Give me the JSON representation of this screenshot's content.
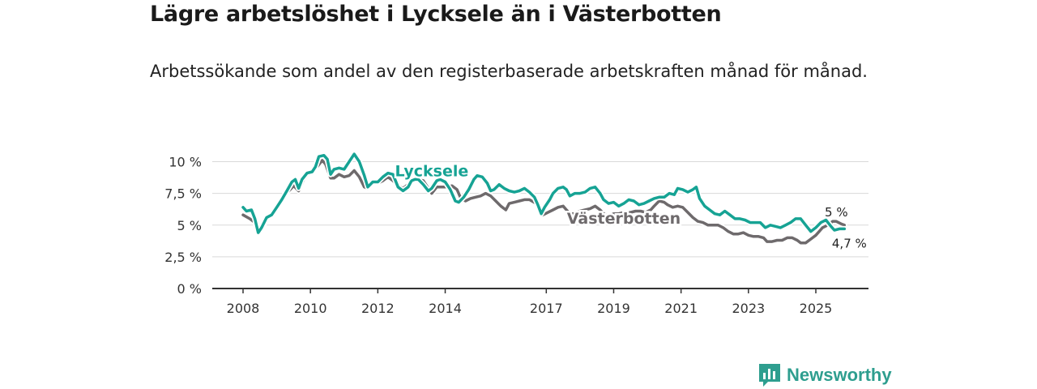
{
  "header": {
    "title": "Lägre arbetslöshet i Lycksele än i Västerbotten",
    "subtitle": "Arbetssökande som andel av den registerbaserade arbetskraften månad för månad."
  },
  "brand": {
    "name": "Newsworthy",
    "color": "#2e9e8f"
  },
  "chart_data": {
    "type": "line",
    "title": "Lägre arbetslöshet i Lycksele än i Västerbotten",
    "subtitle": "Arbetssökande som andel av den registerbaserade arbetskraften månad för månad.",
    "xlabel": "",
    "ylabel": "",
    "xlim": [
      2008.0,
      2026.6
    ],
    "ylim": [
      0,
      10.5
    ],
    "grid": true,
    "y_ticks": [
      {
        "value": 0,
        "label": "0 %"
      },
      {
        "value": 2.5,
        "label": "2,5 %"
      },
      {
        "value": 5,
        "label": "5 %"
      },
      {
        "value": 7.5,
        "label": "7,5 %"
      },
      {
        "value": 10,
        "label": "10 %"
      }
    ],
    "x_ticks": [
      {
        "value": 2008,
        "label": "2008"
      },
      {
        "value": 2010,
        "label": "2010"
      },
      {
        "value": 2012,
        "label": "2012"
      },
      {
        "value": 2014,
        "label": "2014"
      },
      {
        "value": 2017,
        "label": "2017"
      },
      {
        "value": 2019,
        "label": "2019"
      },
      {
        "value": 2021,
        "label": "2021"
      },
      {
        "value": 2023,
        "label": "2023"
      },
      {
        "value": 2025,
        "label": "2025"
      }
    ],
    "series": [
      {
        "name": "Västerbotten",
        "color": "#6e6a6c",
        "end_label": "5 %",
        "points": [
          [
            2008.0,
            5.8
          ],
          [
            2008.2,
            5.5
          ],
          [
            2008.35,
            5.2
          ],
          [
            2008.45,
            4.7
          ],
          [
            2008.6,
            5.0
          ],
          [
            2008.75,
            5.6
          ],
          [
            2008.9,
            6.0
          ],
          [
            2009.0,
            6.5
          ],
          [
            2009.2,
            7.3
          ],
          [
            2009.4,
            7.8
          ],
          [
            2009.5,
            8.1
          ],
          [
            2009.65,
            7.7
          ],
          [
            2009.8,
            8.6
          ],
          [
            2009.95,
            9.1
          ],
          [
            2010.1,
            9.4
          ],
          [
            2010.2,
            9.6
          ],
          [
            2010.35,
            10.1
          ],
          [
            2010.45,
            9.8
          ],
          [
            2010.6,
            8.7
          ],
          [
            2010.7,
            8.7
          ],
          [
            2010.85,
            9.0
          ],
          [
            2011.0,
            8.8
          ],
          [
            2011.15,
            8.9
          ],
          [
            2011.3,
            9.3
          ],
          [
            2011.45,
            8.8
          ],
          [
            2011.6,
            8.0
          ],
          [
            2011.7,
            7.9
          ],
          [
            2011.85,
            8.3
          ],
          [
            2012.0,
            8.3
          ],
          [
            2012.15,
            8.5
          ],
          [
            2012.3,
            8.8
          ],
          [
            2012.45,
            8.5
          ],
          [
            2012.6,
            8.1
          ],
          [
            2012.75,
            7.9
          ],
          [
            2012.9,
            8.2
          ],
          [
            2013.05,
            8.5
          ],
          [
            2013.2,
            8.6
          ],
          [
            2013.35,
            8.5
          ],
          [
            2013.5,
            7.9
          ],
          [
            2013.6,
            7.5
          ],
          [
            2013.75,
            8.0
          ],
          [
            2013.9,
            8.0
          ],
          [
            2014.05,
            8.0
          ],
          [
            2014.2,
            8.1
          ],
          [
            2014.35,
            7.8
          ],
          [
            2014.45,
            7.2
          ],
          [
            2014.6,
            6.9
          ],
          [
            2014.75,
            7.1
          ],
          [
            2014.9,
            7.2
          ],
          [
            2015.05,
            7.3
          ],
          [
            2015.2,
            7.5
          ],
          [
            2015.35,
            7.3
          ],
          [
            2015.5,
            6.9
          ],
          [
            2015.65,
            6.5
          ],
          [
            2015.8,
            6.2
          ],
          [
            2015.9,
            6.7
          ],
          [
            2016.05,
            6.8
          ],
          [
            2016.2,
            6.9
          ],
          [
            2016.35,
            7.0
          ],
          [
            2016.5,
            7.0
          ],
          [
            2016.7,
            6.7
          ],
          [
            2016.8,
            6.2
          ],
          [
            2016.9,
            5.8
          ],
          [
            2017.05,
            6.0
          ],
          [
            2017.2,
            6.2
          ],
          [
            2017.35,
            6.4
          ],
          [
            2017.5,
            6.5
          ],
          [
            2017.6,
            6.2
          ],
          [
            2017.7,
            5.9
          ],
          [
            2017.85,
            5.9
          ],
          [
            2018.0,
            6.1
          ],
          [
            2018.15,
            6.2
          ],
          [
            2018.3,
            6.3
          ],
          [
            2018.45,
            6.5
          ],
          [
            2018.6,
            6.2
          ],
          [
            2018.7,
            5.9
          ],
          [
            2018.85,
            5.7
          ],
          [
            2019.0,
            5.9
          ],
          [
            2019.15,
            5.9
          ],
          [
            2019.3,
            6.0
          ],
          [
            2019.5,
            6.0
          ],
          [
            2019.65,
            6.1
          ],
          [
            2019.8,
            6.1
          ],
          [
            2019.95,
            6.0
          ],
          [
            2020.1,
            6.2
          ],
          [
            2020.2,
            6.5
          ],
          [
            2020.35,
            6.9
          ],
          [
            2020.5,
            6.8
          ],
          [
            2020.6,
            6.6
          ],
          [
            2020.75,
            6.4
          ],
          [
            2020.9,
            6.5
          ],
          [
            2021.05,
            6.4
          ],
          [
            2021.2,
            6.0
          ],
          [
            2021.35,
            5.6
          ],
          [
            2021.5,
            5.3
          ],
          [
            2021.65,
            5.2
          ],
          [
            2021.8,
            5.0
          ],
          [
            2021.95,
            5.0
          ],
          [
            2022.1,
            5.0
          ],
          [
            2022.25,
            4.8
          ],
          [
            2022.4,
            4.5
          ],
          [
            2022.55,
            4.3
          ],
          [
            2022.7,
            4.3
          ],
          [
            2022.85,
            4.4
          ],
          [
            2023.0,
            4.2
          ],
          [
            2023.15,
            4.1
          ],
          [
            2023.3,
            4.1
          ],
          [
            2023.45,
            4.0
          ],
          [
            2023.55,
            3.7
          ],
          [
            2023.7,
            3.7
          ],
          [
            2023.85,
            3.8
          ],
          [
            2024.0,
            3.8
          ],
          [
            2024.15,
            4.0
          ],
          [
            2024.3,
            4.0
          ],
          [
            2024.45,
            3.8
          ],
          [
            2024.55,
            3.6
          ],
          [
            2024.7,
            3.6
          ],
          [
            2024.85,
            3.9
          ],
          [
            2025.0,
            4.2
          ],
          [
            2025.1,
            4.5
          ],
          [
            2025.2,
            4.8
          ],
          [
            2025.35,
            5.0
          ],
          [
            2025.5,
            5.3
          ],
          [
            2025.6,
            5.3
          ],
          [
            2025.75,
            5.1
          ],
          [
            2025.85,
            5.0
          ]
        ]
      },
      {
        "name": "Lycksele",
        "color": "#16a394",
        "end_label": "4,7 %",
        "points": [
          [
            2008.0,
            6.4
          ],
          [
            2008.1,
            6.1
          ],
          [
            2008.25,
            6.2
          ],
          [
            2008.35,
            5.5
          ],
          [
            2008.45,
            4.4
          ],
          [
            2008.55,
            4.8
          ],
          [
            2008.7,
            5.6
          ],
          [
            2008.85,
            5.8
          ],
          [
            2009.0,
            6.4
          ],
          [
            2009.15,
            7.0
          ],
          [
            2009.3,
            7.7
          ],
          [
            2009.45,
            8.4
          ],
          [
            2009.55,
            8.6
          ],
          [
            2009.65,
            7.9
          ],
          [
            2009.75,
            8.6
          ],
          [
            2009.9,
            9.1
          ],
          [
            2010.05,
            9.2
          ],
          [
            2010.15,
            9.6
          ],
          [
            2010.25,
            10.4
          ],
          [
            2010.4,
            10.5
          ],
          [
            2010.5,
            10.2
          ],
          [
            2010.6,
            9.0
          ],
          [
            2010.7,
            9.4
          ],
          [
            2010.85,
            9.5
          ],
          [
            2011.0,
            9.4
          ],
          [
            2011.15,
            10.0
          ],
          [
            2011.3,
            10.6
          ],
          [
            2011.45,
            10.0
          ],
          [
            2011.6,
            8.9
          ],
          [
            2011.7,
            8.0
          ],
          [
            2011.85,
            8.4
          ],
          [
            2012.0,
            8.4
          ],
          [
            2012.15,
            8.8
          ],
          [
            2012.3,
            9.1
          ],
          [
            2012.45,
            9.0
          ],
          [
            2012.6,
            8.0
          ],
          [
            2012.75,
            7.7
          ],
          [
            2012.9,
            8.0
          ],
          [
            2013.0,
            8.5
          ],
          [
            2013.1,
            8.6
          ],
          [
            2013.2,
            8.6
          ],
          [
            2013.35,
            8.2
          ],
          [
            2013.5,
            7.7
          ],
          [
            2013.6,
            7.9
          ],
          [
            2013.75,
            8.5
          ],
          [
            2013.85,
            8.6
          ],
          [
            2014.0,
            8.4
          ],
          [
            2014.15,
            7.8
          ],
          [
            2014.3,
            6.9
          ],
          [
            2014.4,
            6.8
          ],
          [
            2014.55,
            7.2
          ],
          [
            2014.7,
            7.8
          ],
          [
            2014.85,
            8.6
          ],
          [
            2014.95,
            8.9
          ],
          [
            2015.1,
            8.8
          ],
          [
            2015.25,
            8.3
          ],
          [
            2015.35,
            7.7
          ],
          [
            2015.45,
            7.8
          ],
          [
            2015.6,
            8.2
          ],
          [
            2015.75,
            7.9
          ],
          [
            2015.9,
            7.7
          ],
          [
            2016.05,
            7.6
          ],
          [
            2016.2,
            7.7
          ],
          [
            2016.35,
            7.9
          ],
          [
            2016.5,
            7.6
          ],
          [
            2016.65,
            7.2
          ],
          [
            2016.75,
            6.6
          ],
          [
            2016.85,
            5.9
          ],
          [
            2016.95,
            6.4
          ],
          [
            2017.1,
            7.0
          ],
          [
            2017.2,
            7.5
          ],
          [
            2017.35,
            7.9
          ],
          [
            2017.5,
            8.0
          ],
          [
            2017.6,
            7.8
          ],
          [
            2017.7,
            7.3
          ],
          [
            2017.85,
            7.5
          ],
          [
            2018.0,
            7.5
          ],
          [
            2018.15,
            7.6
          ],
          [
            2018.3,
            7.9
          ],
          [
            2018.45,
            8.0
          ],
          [
            2018.6,
            7.5
          ],
          [
            2018.7,
            7.0
          ],
          [
            2018.85,
            6.7
          ],
          [
            2019.0,
            6.8
          ],
          [
            2019.15,
            6.5
          ],
          [
            2019.3,
            6.7
          ],
          [
            2019.45,
            7.0
          ],
          [
            2019.6,
            6.9
          ],
          [
            2019.75,
            6.6
          ],
          [
            2019.9,
            6.7
          ],
          [
            2020.05,
            6.9
          ],
          [
            2020.2,
            7.1
          ],
          [
            2020.35,
            7.2
          ],
          [
            2020.5,
            7.2
          ],
          [
            2020.65,
            7.5
          ],
          [
            2020.8,
            7.4
          ],
          [
            2020.9,
            7.9
          ],
          [
            2021.05,
            7.8
          ],
          [
            2021.2,
            7.6
          ],
          [
            2021.35,
            7.8
          ],
          [
            2021.45,
            8.0
          ],
          [
            2021.55,
            7.1
          ],
          [
            2021.7,
            6.5
          ],
          [
            2021.85,
            6.2
          ],
          [
            2022.0,
            5.9
          ],
          [
            2022.15,
            5.8
          ],
          [
            2022.3,
            6.1
          ],
          [
            2022.45,
            5.8
          ],
          [
            2022.6,
            5.5
          ],
          [
            2022.75,
            5.5
          ],
          [
            2022.9,
            5.4
          ],
          [
            2023.05,
            5.2
          ],
          [
            2023.2,
            5.2
          ],
          [
            2023.35,
            5.2
          ],
          [
            2023.5,
            4.8
          ],
          [
            2023.65,
            5.0
          ],
          [
            2023.8,
            4.9
          ],
          [
            2023.95,
            4.8
          ],
          [
            2024.1,
            5.0
          ],
          [
            2024.25,
            5.2
          ],
          [
            2024.4,
            5.5
          ],
          [
            2024.55,
            5.5
          ],
          [
            2024.7,
            5.0
          ],
          [
            2024.85,
            4.5
          ],
          [
            2025.0,
            4.8
          ],
          [
            2025.15,
            5.2
          ],
          [
            2025.3,
            5.4
          ],
          [
            2025.45,
            4.9
          ],
          [
            2025.55,
            4.6
          ],
          [
            2025.7,
            4.7
          ],
          [
            2025.85,
            4.7
          ]
        ]
      }
    ],
    "annotations": [
      {
        "text": "Lycksele",
        "series": "Lycksele",
        "x": 2013.6,
        "y": 9.3,
        "anchor": "middle"
      },
      {
        "text": "Västerbotten",
        "series": "Västerbotten",
        "x": 2019.3,
        "y": 5.55,
        "anchor": "middle"
      }
    ]
  }
}
